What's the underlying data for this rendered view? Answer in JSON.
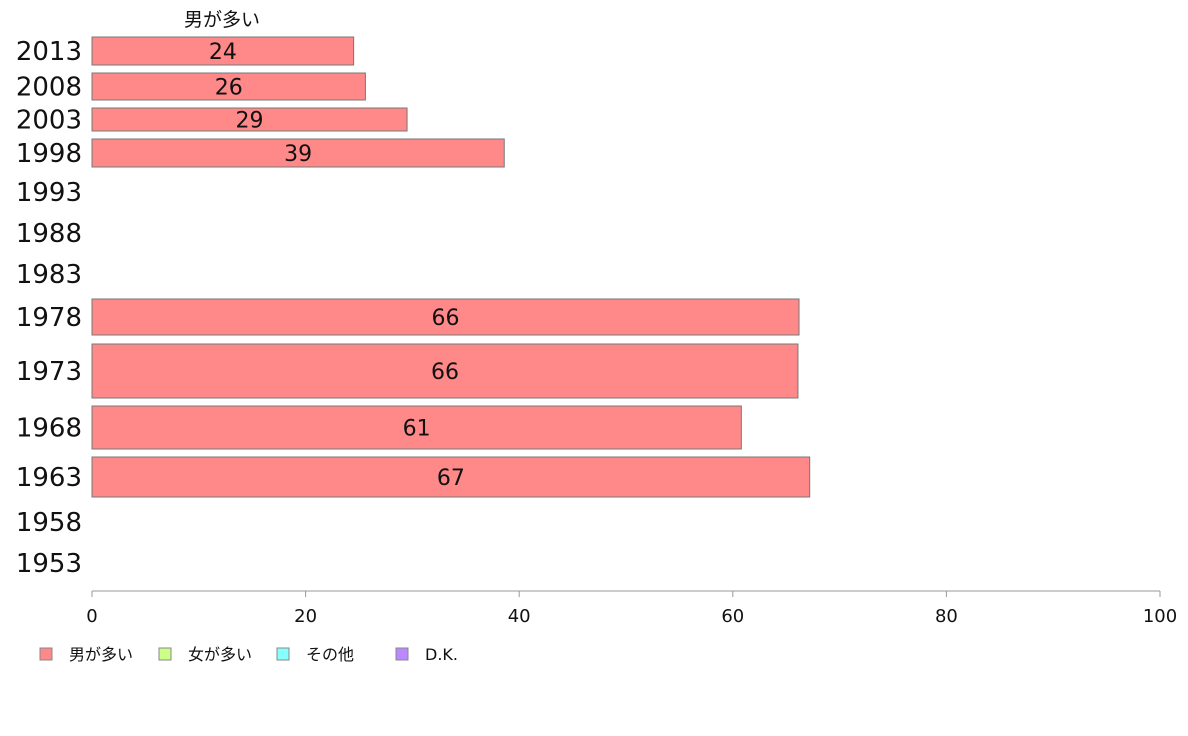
{
  "chart_data": {
    "type": "bar",
    "orientation": "horizontal",
    "stacked": true,
    "categories": [
      "2013",
      "2008",
      "2003",
      "1998",
      "1993",
      "1988",
      "1983",
      "1978",
      "1973",
      "1968",
      "1963",
      "1958",
      "1953"
    ],
    "series": [
      {
        "name": "男が多い",
        "color": "#ff8888",
        "values": [
          24.5,
          25.6,
          29.5,
          38.6,
          null,
          null,
          null,
          66.2,
          66.1,
          60.8,
          67.2,
          null,
          null
        ],
        "labels": [
          "24",
          "26",
          "29",
          "39",
          "",
          "",
          "",
          "66",
          "66",
          "61",
          "67",
          "",
          ""
        ]
      },
      {
        "name": "女が多い",
        "color": "#ccff88",
        "values": [
          null,
          null,
          null,
          null,
          null,
          null,
          null,
          null,
          null,
          null,
          null,
          null,
          null
        ]
      },
      {
        "name": "その他",
        "color": "#88ffff",
        "values": [
          null,
          null,
          null,
          null,
          null,
          null,
          null,
          null,
          null,
          null,
          null,
          null,
          null
        ]
      },
      {
        "name": "D.K.",
        "color": "#bb88ff",
        "values": [
          null,
          null,
          null,
          null,
          null,
          null,
          null,
          null,
          null,
          null,
          null,
          null,
          null
        ]
      }
    ],
    "top_label": "男が多い",
    "xlim": [
      0,
      100
    ],
    "xticks": [
      "0",
      "20",
      "40",
      "60",
      "80",
      "100"
    ],
    "grid": false,
    "legend_position": "bottom-left",
    "bar_border_color": "#777777",
    "axis_color": "#999999"
  }
}
